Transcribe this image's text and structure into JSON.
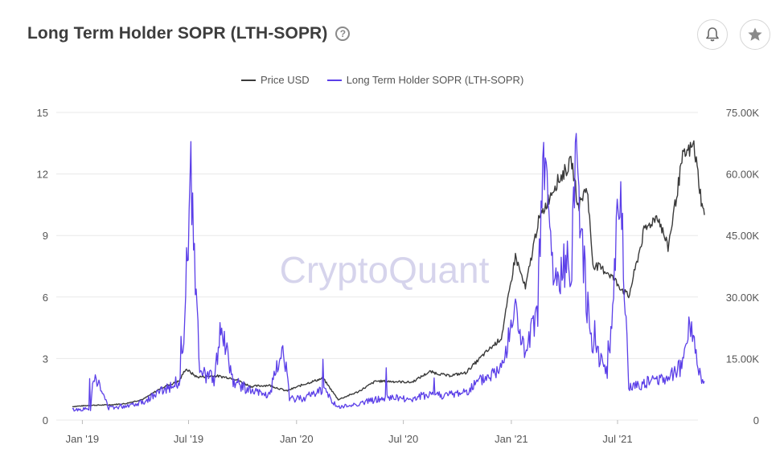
{
  "header": {
    "title": "Long Term Holder SOPR (LTH-SOPR)",
    "help_glyph": "?",
    "bell_icon": "bell-icon",
    "star_icon": "star-icon"
  },
  "watermark": "CryptoQuant",
  "colors": {
    "price": "#3a3a3a",
    "sopr": "#5b3fe8",
    "grid": "#e8e8e8"
  },
  "chart_data": {
    "type": "line",
    "legend_position": "top-center",
    "grid": true,
    "x_ticks": [
      "Jan '19",
      "Jul '19",
      "Jan '20",
      "Jul '20",
      "Jan '21",
      "Jul '21"
    ],
    "x_range": [
      "2018-12-15",
      "2021-11-15"
    ],
    "y_left": {
      "range": [
        0,
        15
      ],
      "ticks": [
        "0",
        "3",
        "6",
        "9",
        "12",
        "15"
      ]
    },
    "y_right": {
      "range": [
        0,
        75000
      ],
      "ticks": [
        "0",
        "15.00K",
        "30.00K",
        "45.00K",
        "60.00K",
        "75.00K"
      ]
    },
    "series": [
      {
        "name": "Price USD",
        "axis": "right",
        "points": [
          [
            "2018-12-15",
            3300
          ],
          [
            "2019-01-15",
            3600
          ],
          [
            "2019-02-15",
            3700
          ],
          [
            "2019-03-15",
            4000
          ],
          [
            "2019-04-15",
            5100
          ],
          [
            "2019-05-15",
            7800
          ],
          [
            "2019-06-15",
            9500
          ],
          [
            "2019-06-26",
            12500
          ],
          [
            "2019-07-15",
            10500
          ],
          [
            "2019-08-15",
            10800
          ],
          [
            "2019-09-15",
            10200
          ],
          [
            "2019-10-15",
            8200
          ],
          [
            "2019-11-15",
            8500
          ],
          [
            "2019-12-15",
            7100
          ],
          [
            "2020-01-15",
            8800
          ],
          [
            "2020-02-15",
            10200
          ],
          [
            "2020-03-12",
            5000
          ],
          [
            "2020-04-15",
            6900
          ],
          [
            "2020-05-15",
            9500
          ],
          [
            "2020-06-15",
            9400
          ],
          [
            "2020-07-15",
            9200
          ],
          [
            "2020-08-15",
            11800
          ],
          [
            "2020-09-15",
            10800
          ],
          [
            "2020-10-15",
            11500
          ],
          [
            "2020-11-15",
            16000
          ],
          [
            "2020-12-15",
            20000
          ],
          [
            "2021-01-08",
            40000
          ],
          [
            "2021-01-25",
            32000
          ],
          [
            "2021-02-15",
            48000
          ],
          [
            "2021-03-15",
            57000
          ],
          [
            "2021-04-14",
            63000
          ],
          [
            "2021-04-25",
            52000
          ],
          [
            "2021-05-10",
            57000
          ],
          [
            "2021-05-20",
            38000
          ],
          [
            "2021-06-15",
            36000
          ],
          [
            "2021-07-20",
            30000
          ],
          [
            "2021-08-15",
            46000
          ],
          [
            "2021-09-07",
            50000
          ],
          [
            "2021-09-25",
            42000
          ],
          [
            "2021-10-20",
            64000
          ],
          [
            "2021-11-08",
            67000
          ],
          [
            "2021-11-15",
            60000
          ],
          [
            "2021-11-22",
            52000
          ],
          [
            "2021-11-26",
            50000
          ]
        ]
      },
      {
        "name": "Long Term Holder SOPR (LTH-SOPR)",
        "axis": "left",
        "points": [
          [
            "2018-12-15",
            0.5
          ],
          [
            "2019-01-15",
            0.55
          ],
          [
            "2019-01-20",
            2.3
          ],
          [
            "2019-02-15",
            0.6
          ],
          [
            "2019-03-15",
            0.7
          ],
          [
            "2019-04-15",
            0.9
          ],
          [
            "2019-05-15",
            1.4
          ],
          [
            "2019-06-15",
            1.9
          ],
          [
            "2019-06-26",
            5.3
          ],
          [
            "2019-07-05",
            11.7
          ],
          [
            "2019-07-20",
            2.3
          ],
          [
            "2019-08-15",
            2.0
          ],
          [
            "2019-08-25",
            4.8
          ],
          [
            "2019-09-15",
            1.9
          ],
          [
            "2019-10-15",
            1.4
          ],
          [
            "2019-11-15",
            1.2
          ],
          [
            "2019-12-10",
            3.6
          ],
          [
            "2019-12-20",
            1.0
          ],
          [
            "2020-01-15",
            1.1
          ],
          [
            "2020-02-15",
            1.5
          ],
          [
            "2020-03-12",
            0.6
          ],
          [
            "2020-04-15",
            0.8
          ],
          [
            "2020-05-15",
            1.0
          ],
          [
            "2020-06-15",
            1.1
          ],
          [
            "2020-07-15",
            1.0
          ],
          [
            "2020-08-15",
            1.3
          ],
          [
            "2020-09-15",
            1.2
          ],
          [
            "2020-10-15",
            1.4
          ],
          [
            "2020-11-15",
            2.0
          ],
          [
            "2020-12-15",
            2.5
          ],
          [
            "2021-01-08",
            5.4
          ],
          [
            "2021-01-25",
            3.0
          ],
          [
            "2021-02-15",
            5.5
          ],
          [
            "2021-02-25",
            13.0
          ],
          [
            "2021-03-15",
            6.5
          ],
          [
            "2021-04-14",
            8.0
          ],
          [
            "2021-04-20",
            13.5
          ],
          [
            "2021-05-10",
            5.6
          ],
          [
            "2021-05-20",
            3.8
          ],
          [
            "2021-06-15",
            2.2
          ],
          [
            "2021-07-05",
            11.5
          ],
          [
            "2021-07-20",
            1.6
          ],
          [
            "2021-08-15",
            1.8
          ],
          [
            "2021-09-15",
            2.0
          ],
          [
            "2021-10-20",
            2.6
          ],
          [
            "2021-11-01",
            5.0
          ],
          [
            "2021-11-15",
            2.5
          ],
          [
            "2021-11-26",
            1.9
          ]
        ]
      }
    ]
  }
}
